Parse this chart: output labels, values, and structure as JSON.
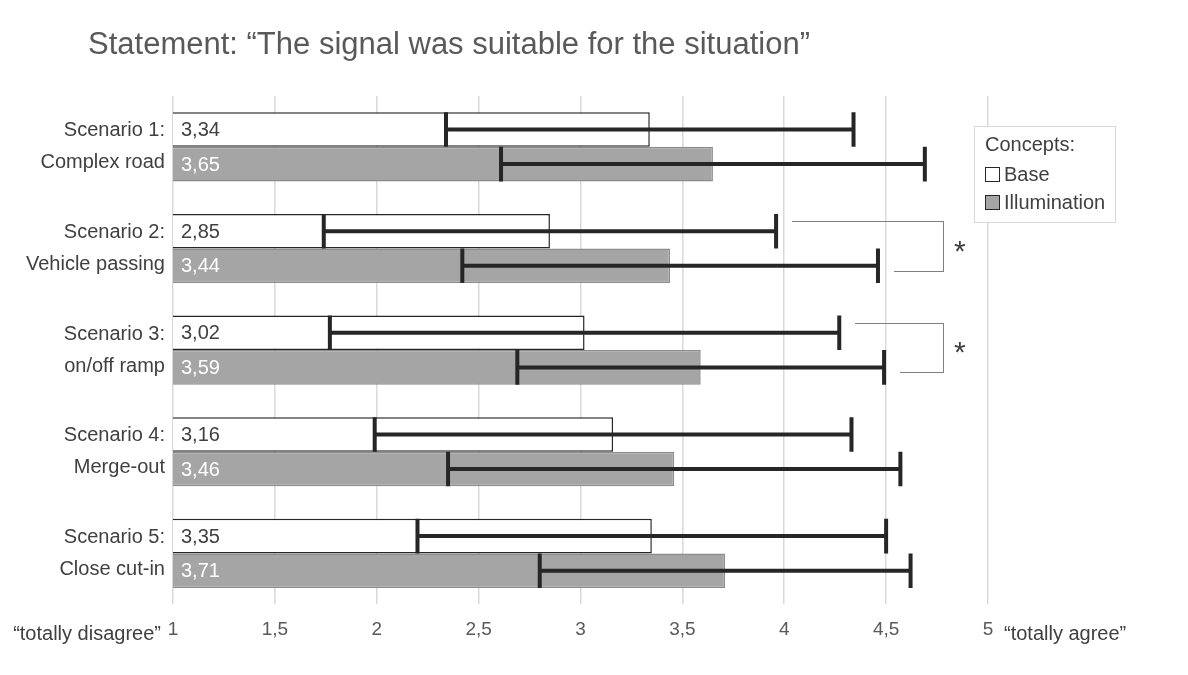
{
  "chart_data": {
    "type": "bar",
    "orientation": "horizontal",
    "title": "Statement: “The signal was suitable for the situation”",
    "categories": [
      "Scenario 1:\nComplex road",
      "Scenario 2:\nVehicle passing",
      "Scenario 3:\non/off ramp",
      "Scenario 4:\nMerge-out",
      "Scenario 5:\nClose cut-in"
    ],
    "series": [
      {
        "name": "Base",
        "color": "#ffffff",
        "values": [
          3.34,
          2.85,
          3.02,
          3.16,
          3.35
        ],
        "errors": [
          1.0,
          1.11,
          1.25,
          1.17,
          1.15
        ],
        "value_labels": [
          "3,34",
          "2,85",
          "3,02",
          "3,16",
          "3,35"
        ]
      },
      {
        "name": "Illumination",
        "color": "#a5a5a5",
        "values": [
          3.65,
          3.44,
          3.59,
          3.46,
          3.71
        ],
        "errors": [
          1.04,
          1.02,
          0.9,
          1.11,
          0.91
        ],
        "value_labels": [
          "3,65",
          "3,44",
          "3,59",
          "3,46",
          "3,71"
        ]
      }
    ],
    "xlim": [
      1,
      5
    ],
    "xticks": [
      1,
      {
        "value": 1.5,
        "label": "1,5"
      },
      2,
      {
        "value": 2.5,
        "label": "2,5"
      },
      3,
      {
        "value": 3.5,
        "label": "3,5"
      },
      4,
      {
        "value": 4.5,
        "label": "4,5"
      },
      5
    ],
    "grid": "x",
    "legend": "top right",
    "legend_title": "Concepts:",
    "annotations": [
      "“totally disagree”",
      "“totally agree”",
      "*",
      "*"
    ]
  }
}
